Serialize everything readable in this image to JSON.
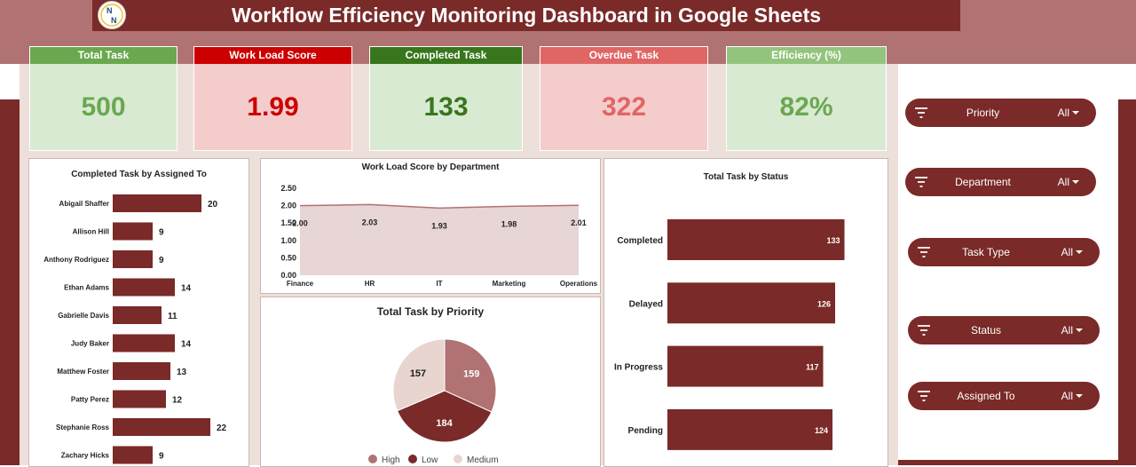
{
  "header": {
    "title": "Workflow Efficiency Monitoring Dashboard in Google Sheets",
    "logo_icon": "nn-logo-icon"
  },
  "kpis": [
    {
      "label": "Total Task",
      "value": "500",
      "header_color": "#6aa84f",
      "box_color": "#d9ead3",
      "value_color": "#6aa84f"
    },
    {
      "label": "Work Load Score",
      "value": "1.99",
      "header_color": "#cc0000",
      "box_color": "#f4cccc",
      "value_color": "#cc0000"
    },
    {
      "label": "Completed Task",
      "value": "133",
      "header_color": "#38761d",
      "box_color": "#d9ead3",
      "value_color": "#38761d"
    },
    {
      "label": "Overdue Task",
      "value": "322",
      "header_color": "#e06666",
      "box_color": "#f4cccc",
      "value_color": "#e06666"
    },
    {
      "label": "Efficiency (%)",
      "value": "82%",
      "header_color": "#93c47d",
      "box_color": "#d9ead3",
      "value_color": "#6aa84f"
    }
  ],
  "filters": [
    {
      "label": "Priority",
      "value": "All"
    },
    {
      "label": "Department",
      "value": "All"
    },
    {
      "label": "Task Type",
      "value": "All"
    },
    {
      "label": "Status",
      "value": "All"
    },
    {
      "label": "Assigned To",
      "value": "All"
    }
  ],
  "chart_data": [
    {
      "type": "bar",
      "orientation": "horizontal",
      "title": "Completed Task by Assigned To",
      "categories": [
        "Abigail Shaffer",
        "Allison Hill",
        "Anthony Rodriguez",
        "Ethan Adams",
        "Gabrielle Davis",
        "Judy Baker",
        "Matthew Foster",
        "Patty Perez",
        "Stephanie Ross",
        "Zachary Hicks"
      ],
      "values": [
        20,
        9,
        9,
        14,
        11,
        14,
        13,
        12,
        22,
        9
      ],
      "labels": [
        "20",
        "9",
        "9",
        "14",
        "11",
        "14",
        "13",
        "12",
        "22",
        "9"
      ],
      "color": "#7a2a28"
    },
    {
      "type": "area",
      "title": "Work Load Score by Department",
      "categories": [
        "Finance",
        "HR",
        "IT",
        "Marketing",
        "Operations"
      ],
      "values": [
        2.0,
        2.03,
        1.93,
        1.98,
        2.01
      ],
      "labels": [
        "2.00",
        "2.03",
        "1.93",
        "1.98",
        "2.01"
      ],
      "ylim": [
        0,
        2.5
      ],
      "yticks": [
        "0.00",
        "0.50",
        "1.00",
        "1.50",
        "2.00",
        "2.50"
      ],
      "color": "#e8d5d5",
      "line_color": "#b07272"
    },
    {
      "type": "bar",
      "orientation": "horizontal",
      "title": "Total Task by Status",
      "categories": [
        "Completed",
        "Delayed",
        "In Progress",
        "Pending"
      ],
      "values": [
        133,
        126,
        117,
        124
      ],
      "labels": [
        "133",
        "126",
        "117",
        "124"
      ],
      "color": "#7a2a28"
    },
    {
      "type": "pie",
      "title": "Total Task by Priority",
      "categories": [
        "High",
        "Low",
        "Medium"
      ],
      "values": [
        159,
        184,
        157
      ],
      "labels": [
        "159",
        "184",
        "157"
      ],
      "colors": [
        "#b07272",
        "#7a2a28",
        "#e8d5d0"
      ],
      "legend": "bottom"
    }
  ]
}
